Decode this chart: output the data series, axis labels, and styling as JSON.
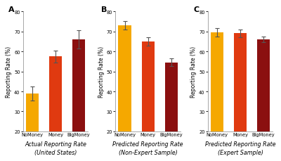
{
  "panels": [
    {
      "label": "A",
      "xlabel_line1": "Actual Reporting Rate",
      "xlabel_line2": "(United States)",
      "values": [
        39.0,
        57.5,
        66.0
      ],
      "errors": [
        3.5,
        3.0,
        4.5
      ],
      "ylim": [
        20,
        80
      ]
    },
    {
      "label": "B",
      "xlabel_line1": "Predicted Reporting Rate",
      "xlabel_line2": "(Non-Expert Sample)",
      "values": [
        73.0,
        65.0,
        54.5
      ],
      "errors": [
        2.0,
        2.2,
        2.0
      ],
      "ylim": [
        20,
        80
      ]
    },
    {
      "label": "C",
      "xlabel_line1": "Predicted Reporting Rate",
      "xlabel_line2": "(Expert Sample)",
      "values": [
        69.5,
        69.0,
        66.0
      ],
      "errors": [
        2.0,
        2.0,
        1.5
      ],
      "ylim": [
        20,
        80
      ]
    }
  ],
  "categories": [
    "NoMoney",
    "Money",
    "BigMoney"
  ],
  "bar_colors": [
    "#F5A800",
    "#E03A10",
    "#8B1010"
  ],
  "ylabel": "Reporting Rate (%)",
  "yticks": [
    20,
    30,
    40,
    50,
    60,
    70,
    80
  ],
  "background_color": "#FFFFFF",
  "bar_width": 0.55,
  "xlabel_fontsize": 5.8,
  "ylabel_fontsize": 5.5,
  "tick_fontsize": 4.8,
  "panel_label_fontsize": 8,
  "errorbar_color": "#555555",
  "spine_color": "#999999"
}
